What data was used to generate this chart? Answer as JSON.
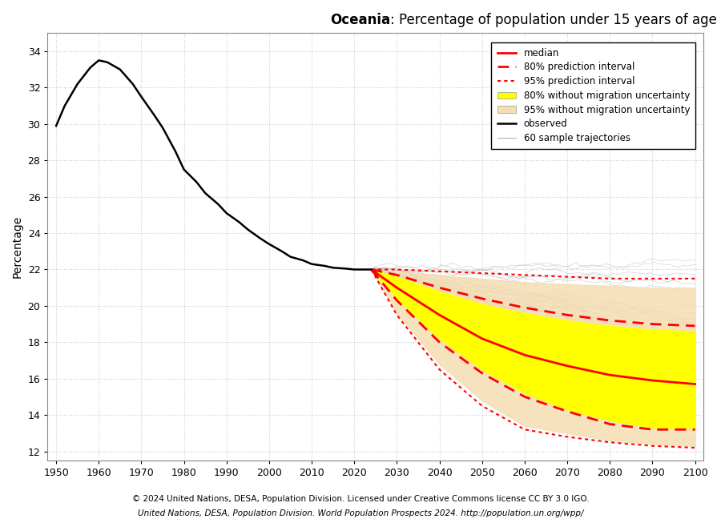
{
  "title_bold": "Oceania",
  "title_rest": ": Percentage of population under 15 years of age",
  "ylabel": "Percentage",
  "xlabel": "",
  "xlim": [
    1948,
    2102
  ],
  "ylim": [
    11.5,
    35
  ],
  "xticks": [
    1950,
    1960,
    1970,
    1980,
    1990,
    2000,
    2010,
    2020,
    2030,
    2040,
    2050,
    2060,
    2070,
    2080,
    2090,
    2100
  ],
  "yticks": [
    12,
    14,
    16,
    18,
    20,
    22,
    24,
    26,
    28,
    30,
    32,
    34
  ],
  "bg_color": "#ffffff",
  "grid_color": "#cccccc",
  "footnote1": "© 2024 United Nations, DESA, Population Division. Licensed under Creative Commons license CC BY 3.0 IGO.",
  "footnote2_normal": "United Nations, DESA, Population Division. ",
  "footnote2_italic": "World Population Prospects 2024",
  "footnote2_end": ". http://population.un.org/wpp/",
  "observed_color": "#000000",
  "median_color": "#ff0000",
  "pi80_color": "#ff0000",
  "pi95_color": "#ff0000",
  "band_95_color": "#f5deb3",
  "band_80_color": "#ffff00",
  "sample_color": "#b0b0b0",
  "observed_years": [
    1950,
    1952,
    1955,
    1958,
    1960,
    1962,
    1965,
    1968,
    1970,
    1973,
    1975,
    1978,
    1980,
    1983,
    1985,
    1988,
    1990,
    1993,
    1995,
    1998,
    2000,
    2003,
    2005,
    2008,
    2010,
    2013,
    2015,
    2018,
    2020,
    2022,
    2024
  ],
  "observed_values": [
    29.9,
    31.0,
    32.2,
    33.1,
    33.5,
    33.4,
    33.0,
    32.2,
    31.5,
    30.5,
    29.8,
    28.5,
    27.5,
    26.8,
    26.2,
    25.6,
    25.1,
    24.6,
    24.2,
    23.7,
    23.4,
    23.0,
    22.7,
    22.5,
    22.3,
    22.2,
    22.1,
    22.05,
    22.0,
    22.0,
    22.0
  ],
  "forecast_years": [
    2024,
    2030,
    2040,
    2050,
    2060,
    2070,
    2080,
    2090,
    2100
  ],
  "median_values": [
    22.0,
    21.0,
    19.5,
    18.2,
    17.3,
    16.7,
    16.2,
    15.9,
    15.7
  ],
  "pi80_upper": [
    22.0,
    21.7,
    21.0,
    20.4,
    19.9,
    19.5,
    19.2,
    19.0,
    18.9
  ],
  "pi80_lower": [
    22.0,
    20.3,
    18.0,
    16.3,
    15.0,
    14.2,
    13.5,
    13.2,
    13.2
  ],
  "pi95_upper": [
    22.0,
    22.0,
    21.9,
    21.8,
    21.7,
    21.6,
    21.5,
    21.5,
    21.5
  ],
  "pi95_lower": [
    22.0,
    19.5,
    16.5,
    14.5,
    13.2,
    12.8,
    12.5,
    12.3,
    12.2
  ],
  "band80_no_mig_upper": [
    22.0,
    21.6,
    20.8,
    20.1,
    19.6,
    19.2,
    18.9,
    18.7,
    18.6
  ],
  "band80_no_mig_lower": [
    22.0,
    20.4,
    18.2,
    16.5,
    15.2,
    14.3,
    13.7,
    13.3,
    13.3
  ],
  "band95_no_mig_upper": [
    22.0,
    21.9,
    21.7,
    21.5,
    21.3,
    21.2,
    21.1,
    21.0,
    21.0
  ],
  "band95_no_mig_lower": [
    22.0,
    19.6,
    16.8,
    14.8,
    13.4,
    13.0,
    12.6,
    12.4,
    12.3
  ]
}
